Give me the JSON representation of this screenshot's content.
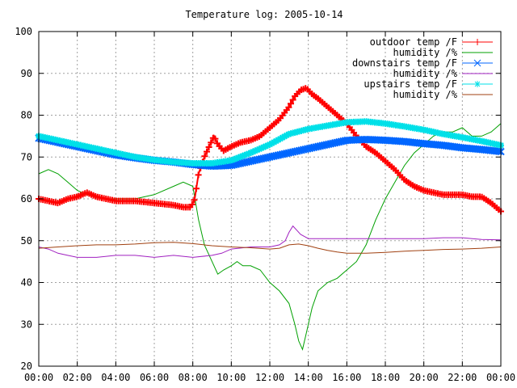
{
  "chart_data": {
    "type": "line",
    "title": "Temperature log: 2005-10-14",
    "xlabel": "",
    "ylabel": "",
    "xlim": [
      "00:00",
      "24:00"
    ],
    "ylim": [
      20,
      100
    ],
    "x_ticks": [
      "00:00",
      "02:00",
      "04:00",
      "06:00",
      "08:00",
      "10:00",
      "12:00",
      "14:00",
      "16:00",
      "18:00",
      "20:00",
      "22:00",
      "00:00"
    ],
    "y_ticks": [
      "20",
      "30",
      "40",
      "50",
      "60",
      "70",
      "80",
      "90",
      "100"
    ],
    "grid": true,
    "legend_position": "top-right",
    "x_unit": "hours",
    "series": [
      {
        "name": "outdoor temp /F",
        "color": "#ff0000",
        "marker": "plus",
        "x": [
          0,
          0.5,
          1,
          1.5,
          2,
          2.5,
          3,
          3.5,
          4,
          5,
          6,
          7,
          7.5,
          7.9,
          8.1,
          8.3,
          8.6,
          8.9,
          9.1,
          9.3,
          9.6,
          10,
          10.5,
          11,
          11.5,
          12,
          12.5,
          13,
          13.3,
          13.6,
          13.9,
          14.2,
          14.5,
          15,
          15.5,
          16,
          16.5,
          17,
          17.5,
          18,
          18.5,
          19,
          19.5,
          20,
          20.5,
          21,
          21.5,
          22,
          22.5,
          23,
          23.5,
          24
        ],
        "y": [
          60,
          59.5,
          59,
          60,
          60.5,
          61.5,
          60.5,
          60,
          59.5,
          59.5,
          59,
          58.5,
          58,
          58,
          60,
          66,
          70,
          73,
          75,
          73,
          71.5,
          72.5,
          73.5,
          74,
          75,
          77,
          79,
          82,
          84.5,
          86,
          86.5,
          85,
          84,
          82,
          80,
          78,
          75,
          72.5,
          71,
          69,
          67,
          64.5,
          63,
          62,
          61.5,
          61,
          61,
          61,
          60.5,
          60.5,
          59,
          57
        ]
      },
      {
        "name": "humidity /%",
        "color": "#00a000",
        "marker": "none",
        "x": [
          0,
          0.5,
          1,
          1.5,
          2,
          2.5,
          3,
          3.5,
          4,
          5,
          6,
          7,
          7.5,
          8,
          8.3,
          8.6,
          9,
          9.3,
          9.6,
          10,
          10.3,
          10.6,
          11,
          11.5,
          12,
          12.5,
          13,
          13.3,
          13.5,
          13.7,
          13.9,
          14.2,
          14.5,
          15,
          15.5,
          16,
          16.5,
          17,
          17.5,
          18,
          18.5,
          19,
          19.5,
          20,
          20.5,
          21,
          21.5,
          22,
          22.5,
          23,
          23.5,
          24
        ],
        "y": [
          66,
          67,
          66,
          64,
          62,
          61,
          60.5,
          60,
          60,
          60,
          61,
          63,
          64,
          63,
          55,
          49,
          45,
          42,
          43,
          44,
          45,
          44,
          44,
          43,
          40,
          38,
          35,
          30,
          26,
          24,
          28,
          34,
          38,
          40,
          41,
          43,
          45,
          49,
          55,
          60,
          64,
          68,
          71,
          73,
          75,
          76,
          76,
          77,
          75,
          75,
          76,
          78
        ]
      },
      {
        "name": "downstairs temp /F",
        "color": "#0066ff",
        "marker": "x",
        "x": [
          0,
          1,
          2,
          3,
          4,
          5,
          6,
          7,
          8,
          9,
          10,
          11,
          12,
          13,
          14,
          15,
          16,
          17,
          18,
          19,
          20,
          21,
          22,
          23,
          24
        ],
        "y": [
          74.5,
          73.5,
          72.5,
          71.5,
          70.5,
          69.8,
          69.2,
          68.8,
          68.2,
          67.8,
          68,
          69,
          70,
          71,
          72,
          73,
          74,
          74.2,
          74,
          73.7,
          73.2,
          72.8,
          72.2,
          71.8,
          71.3
        ]
      },
      {
        "name": "humidity /%",
        "color": "#a020c0",
        "marker": "none",
        "x": [
          0,
          0.5,
          1,
          1.5,
          2,
          3,
          4,
          5,
          6,
          7,
          8,
          9,
          9.5,
          10,
          11,
          12,
          12.5,
          12.8,
          13,
          13.2,
          13.4,
          13.6,
          13.8,
          14,
          14.5,
          15,
          16,
          17,
          18,
          19,
          20,
          21,
          22,
          23,
          24
        ],
        "y": [
          48.5,
          48,
          47,
          46.5,
          46,
          46,
          46.5,
          46.5,
          46,
          46.5,
          46,
          46.5,
          47,
          48,
          48.5,
          48.5,
          49,
          50,
          52,
          53.5,
          52.5,
          51.5,
          51,
          50.5,
          50.5,
          50.5,
          50.5,
          50.5,
          50.5,
          50.5,
          50.5,
          50.7,
          50.7,
          50.3,
          50.2
        ]
      },
      {
        "name": "upstairs temp /F",
        "color": "#00e0e8",
        "marker": "star",
        "x": [
          0,
          1,
          2,
          3,
          4,
          5,
          6,
          7,
          8,
          9,
          10,
          11,
          12,
          13,
          14,
          15,
          16,
          17,
          18,
          19,
          20,
          21,
          22,
          23,
          24
        ],
        "y": [
          75,
          74,
          73,
          72,
          71,
          70,
          69.3,
          68.8,
          68.5,
          68.5,
          69.2,
          71,
          73,
          75.5,
          76.7,
          77.5,
          78.3,
          78.5,
          78,
          77.3,
          76.5,
          75.5,
          74.7,
          73.8,
          72.8
        ]
      },
      {
        "name": "humidity /%",
        "color": "#a04010",
        "marker": "none",
        "x": [
          0,
          1,
          2,
          3,
          4,
          5,
          6,
          7,
          8,
          9,
          10,
          11,
          12,
          12.5,
          13,
          13.5,
          14,
          14.5,
          15,
          15.5,
          16,
          17,
          18,
          19,
          20,
          21,
          22,
          23,
          24
        ],
        "y": [
          48.2,
          48.5,
          48.8,
          49,
          49,
          49.2,
          49.5,
          49.6,
          49.3,
          48.8,
          48.5,
          48.3,
          48,
          48.2,
          49,
          49.2,
          48.8,
          48.2,
          47.7,
          47.3,
          47,
          47,
          47.2,
          47.5,
          47.7,
          47.9,
          48,
          48.2,
          48.5
        ]
      }
    ]
  }
}
